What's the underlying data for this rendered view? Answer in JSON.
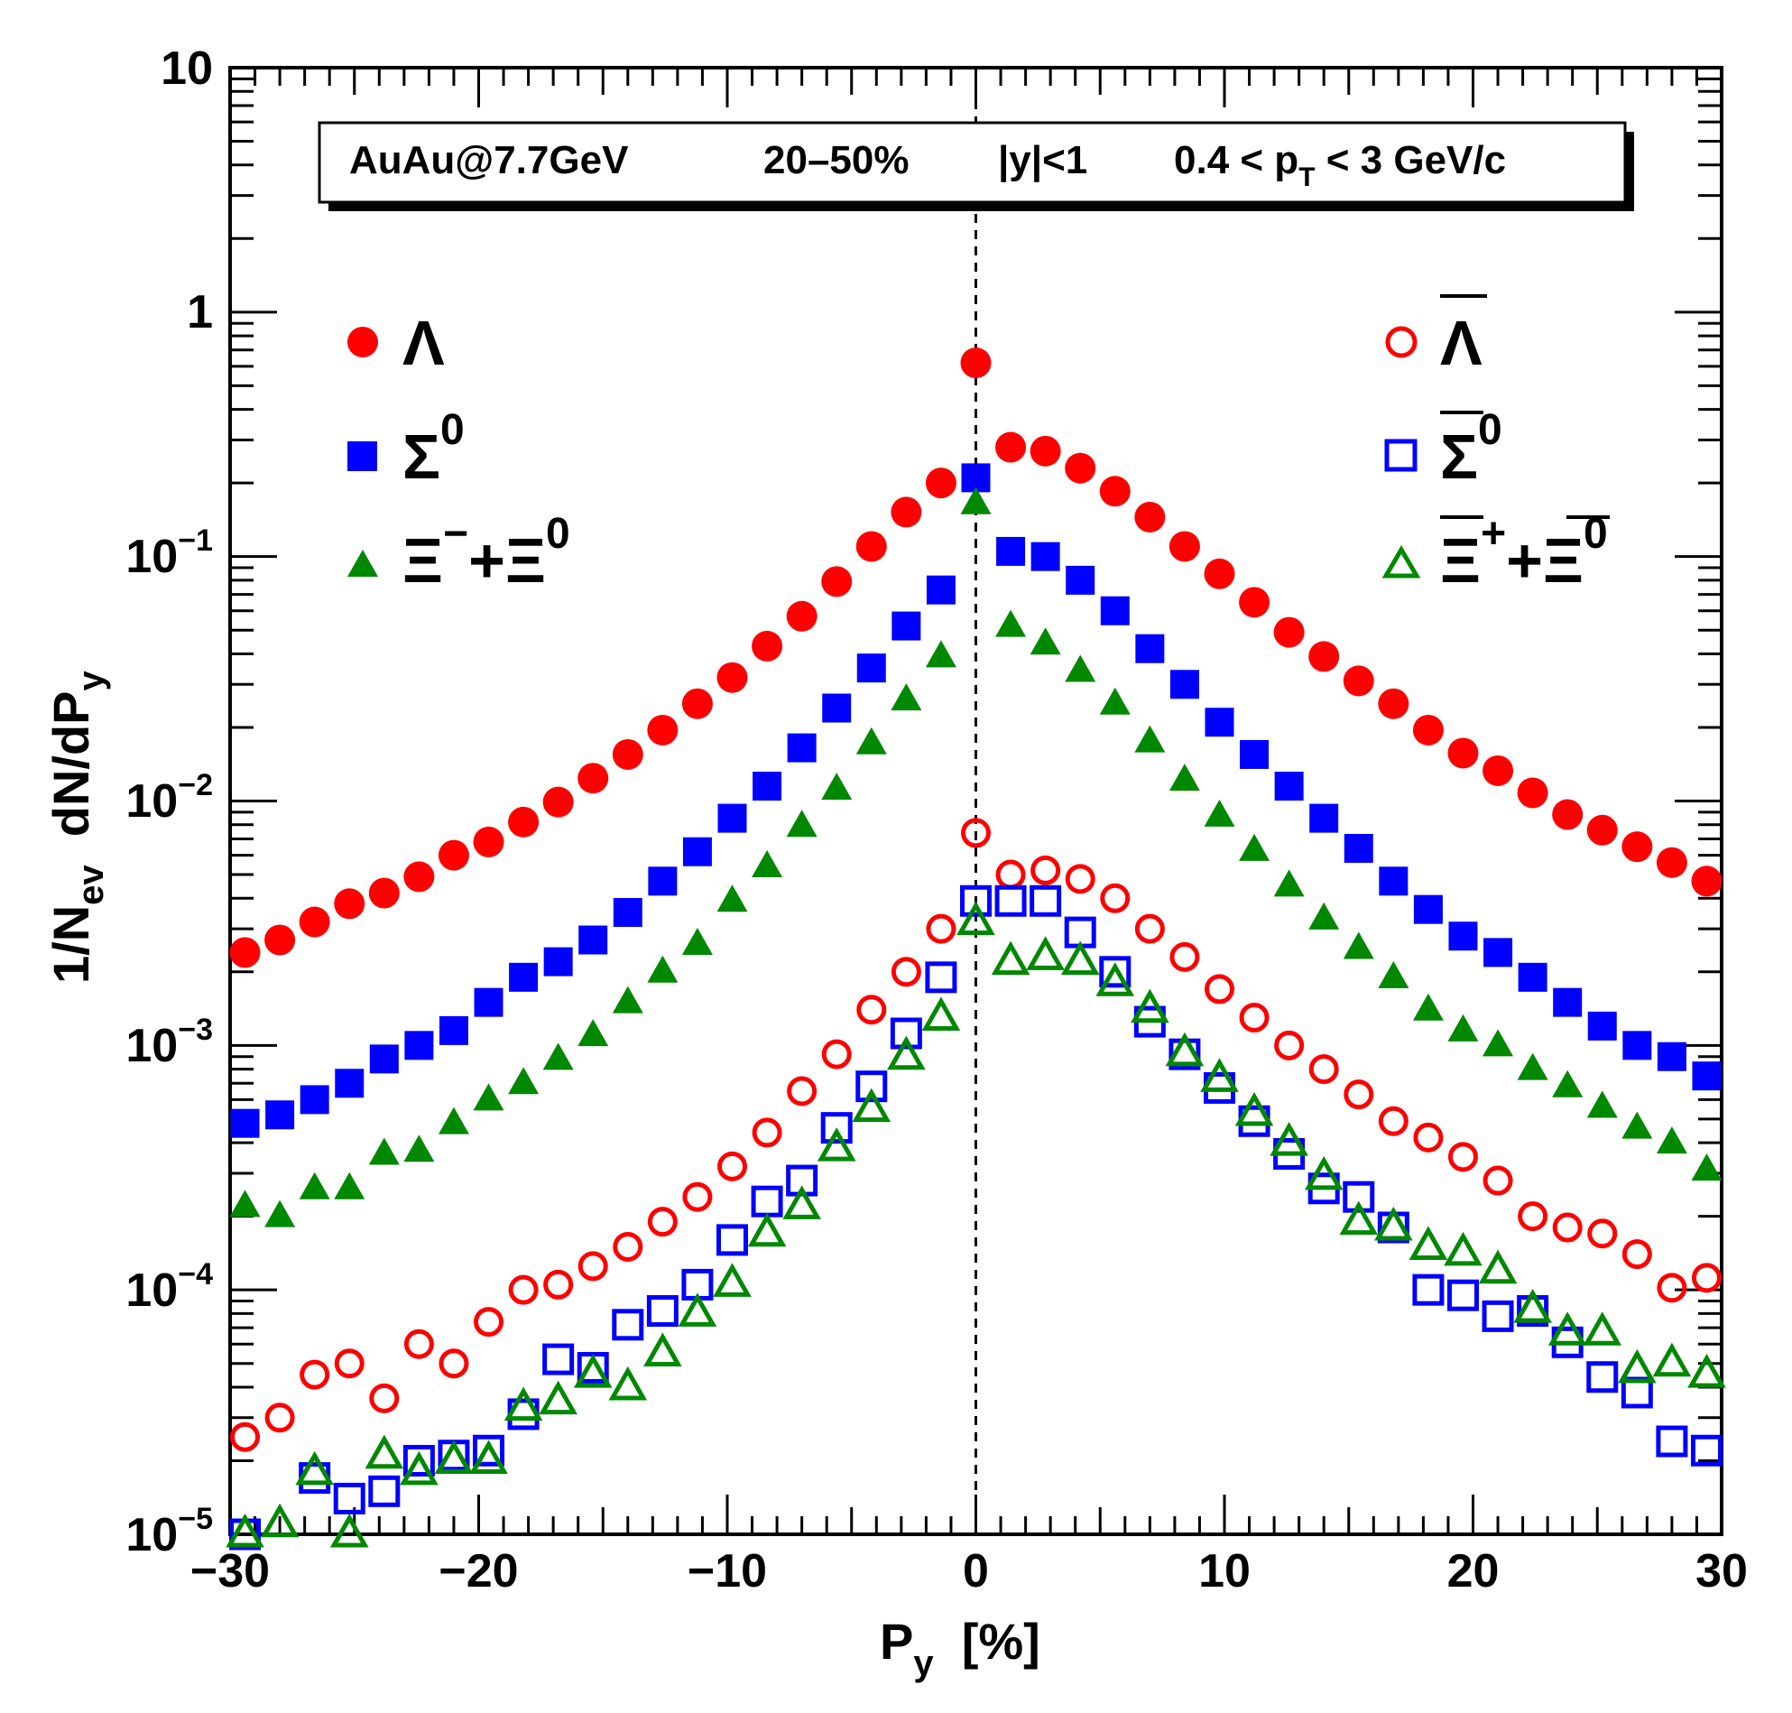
{
  "chart_data": {
    "type": "scatter",
    "title": "AuAu@7.7GeV    20–50%    |y|<1    0.4 < p_T < 3 GeV/c",
    "annotation": {
      "system": "AuAu@7.7GeV",
      "centrality": "20–50%",
      "rapidity": "|y|<1",
      "pt_prefix": "0.4 < p",
      "pt_sub": "T",
      "pt_suffix": " < 3 GeV/c"
    },
    "xlabel": {
      "main": "P",
      "sub": "y",
      "unit": "  [%]"
    },
    "ylabel": {
      "a": "1/N",
      "a_sub": "ev",
      "b": "  dN/dP",
      "b_sub": "y"
    },
    "xlim": [
      -30,
      30
    ],
    "ylim": [
      1e-05,
      10
    ],
    "yscale": "log",
    "x_ticks": [
      "−30",
      "−20",
      "−10",
      "0",
      "10",
      "20",
      "30"
    ],
    "y_ticks": [
      {
        "text": "10",
        "exp": "−5"
      },
      {
        "text": "10",
        "exp": "−4"
      },
      {
        "text": "10",
        "exp": "−3"
      },
      {
        "text": "10",
        "exp": "−2"
      },
      {
        "text": "10",
        "exp": "−1"
      },
      {
        "text": "1",
        "exp": ""
      },
      {
        "text": "10",
        "exp": ""
      }
    ],
    "reference_line": {
      "x": 0,
      "style": "dashed"
    },
    "x": [
      -29.4,
      -28.0,
      -26.6,
      -25.2,
      -23.8,
      -22.4,
      -21.0,
      -19.6,
      -18.2,
      -16.8,
      -15.4,
      -14.0,
      -12.6,
      -11.2,
      -9.8,
      -8.4,
      -7.0,
      -5.6,
      -4.2,
      -2.8,
      -1.4,
      0.0,
      1.4,
      2.8,
      4.2,
      5.6,
      7.0,
      8.4,
      9.8,
      11.2,
      12.6,
      14.0,
      15.4,
      16.8,
      18.2,
      19.6,
      21.0,
      22.4,
      23.8,
      25.2,
      26.6,
      28.0,
      29.4
    ],
    "series": [
      {
        "name": "Λ",
        "color": "#ff0000",
        "marker": "circle",
        "filled": true,
        "values": [
          0.0024,
          0.0027,
          0.0032,
          0.0038,
          0.0042,
          0.0049,
          0.006,
          0.0068,
          0.0082,
          0.0099,
          0.0124,
          0.0155,
          0.0195,
          0.025,
          0.032,
          0.043,
          0.057,
          0.079,
          0.11,
          0.152,
          0.2,
          0.62,
          0.28,
          0.27,
          0.23,
          0.185,
          0.145,
          0.11,
          0.085,
          0.065,
          0.049,
          0.039,
          0.031,
          0.025,
          0.0195,
          0.0157,
          0.0133,
          0.0108,
          0.0088,
          0.0076,
          0.0065,
          0.0056,
          0.0047
        ]
      },
      {
        "name": "Σ⁰",
        "color": "#0000ff",
        "marker": "square",
        "filled": true,
        "values": [
          0.00048,
          0.00052,
          0.0006,
          0.0007,
          0.00088,
          0.001,
          0.00115,
          0.0015,
          0.0019,
          0.0022,
          0.0027,
          0.0035,
          0.0047,
          0.0062,
          0.0085,
          0.0115,
          0.0165,
          0.024,
          0.035,
          0.052,
          0.073,
          0.21,
          0.105,
          0.1,
          0.08,
          0.06,
          0.042,
          0.03,
          0.021,
          0.0155,
          0.0115,
          0.0085,
          0.0064,
          0.0047,
          0.0036,
          0.0028,
          0.0024,
          0.0019,
          0.0015,
          0.0012,
          0.001,
          0.0009,
          0.00075
        ]
      },
      {
        "name": "Ξ⁻+Ξ⁰",
        "color": "#008800",
        "marker": "triangle",
        "filled": true,
        "values": [
          0.00022,
          0.0002,
          0.00026,
          0.00026,
          0.00036,
          0.00037,
          0.00048,
          0.0006,
          0.0007,
          0.00088,
          0.0011,
          0.0015,
          0.002,
          0.0026,
          0.0039,
          0.0054,
          0.0079,
          0.0112,
          0.0172,
          0.026,
          0.039,
          0.165,
          0.052,
          0.044,
          0.034,
          0.025,
          0.0175,
          0.0122,
          0.0087,
          0.0063,
          0.0045,
          0.0033,
          0.0025,
          0.0019,
          0.0014,
          0.00115,
          0.001,
          0.0008,
          0.00068,
          0.00056,
          0.00046,
          0.0004,
          0.00031
        ]
      },
      {
        "name": "anti-Λ",
        "color": "#ff0000",
        "marker": "circle",
        "filled": false,
        "values": [
          2.5e-05,
          3e-05,
          4.5e-05,
          5e-05,
          3.6e-05,
          6e-05,
          5e-05,
          7.4e-05,
          0.0001,
          0.000105,
          0.000125,
          0.00015,
          0.00019,
          0.00024,
          0.00032,
          0.00044,
          0.00065,
          0.00092,
          0.0014,
          0.002,
          0.003,
          0.0074,
          0.005,
          0.0052,
          0.0048,
          0.004,
          0.003,
          0.0023,
          0.0017,
          0.0013,
          0.001,
          0.0008,
          0.00063,
          0.00049,
          0.00042,
          0.00035,
          0.00028,
          0.0002,
          0.00018,
          0.00017,
          0.00014,
          0.000102,
          0.000112
        ]
      },
      {
        "name": "anti-Σ⁰",
        "color": "#0000ff",
        "marker": "square",
        "filled": false,
        "values": [
          1e-05,
          null,
          1.7e-05,
          1.4e-05,
          1.5e-05,
          2e-05,
          2.1e-05,
          2.2e-05,
          3.1e-05,
          5.2e-05,
          4.8e-05,
          7.2e-05,
          8.2e-05,
          0.000105,
          0.00016,
          0.00023,
          0.00028,
          0.00046,
          0.00068,
          0.00112,
          0.0019,
          0.0039,
          0.0039,
          0.0039,
          0.0029,
          0.002,
          0.00125,
          0.00092,
          0.00067,
          0.00049,
          0.00036,
          0.00026,
          0.00024,
          0.00018,
          0.0001,
          9.5e-05,
          7.8e-05,
          8.2e-05,
          6.1e-05,
          4.4e-05,
          3.8e-05,
          2.4e-05,
          2.2e-05
        ]
      },
      {
        "name": "anti-Ξ⁺+anti-Ξ⁰",
        "color": "#008800",
        "marker": "triangle",
        "filled": false,
        "values": [
          1e-05,
          1.1e-05,
          1.8e-05,
          1e-05,
          2.1e-05,
          1.8e-05,
          2e-05,
          2e-05,
          3.3e-05,
          3.5e-05,
          4.5e-05,
          4e-05,
          5.5e-05,
          8e-05,
          0.000106,
          0.00017,
          0.00022,
          0.00038,
          0.00055,
          0.0009,
          0.0013,
          0.0032,
          0.0022,
          0.0023,
          0.0022,
          0.0018,
          0.0014,
          0.00093,
          0.00073,
          0.00053,
          0.0004,
          0.00029,
          0.00019,
          0.00018,
          0.00015,
          0.000142,
          0.00012,
          8.3e-05,
          6.7e-05,
          6.7e-05,
          4.7e-05,
          5e-05,
          4.5e-05
        ]
      }
    ],
    "legend": {
      "placement": "top-left / top-right",
      "left": [
        {
          "series": 0,
          "symbol": "Λ"
        },
        {
          "series": 1,
          "symbol": "Σ",
          "sup": "0"
        },
        {
          "series": 2,
          "symbol": "Ξ",
          "sup": "−",
          "plus": "+",
          "symbol2": "Ξ",
          "sup2": "0"
        }
      ],
      "right": [
        {
          "series": 3,
          "symbol": "Λ"
        },
        {
          "series": 4,
          "symbol": "Σ",
          "sup": "0"
        },
        {
          "series": 5,
          "symbol": "Ξ",
          "sup": "+",
          "plus": "+",
          "symbol2": "Ξ",
          "sup2": "0"
        }
      ]
    }
  }
}
